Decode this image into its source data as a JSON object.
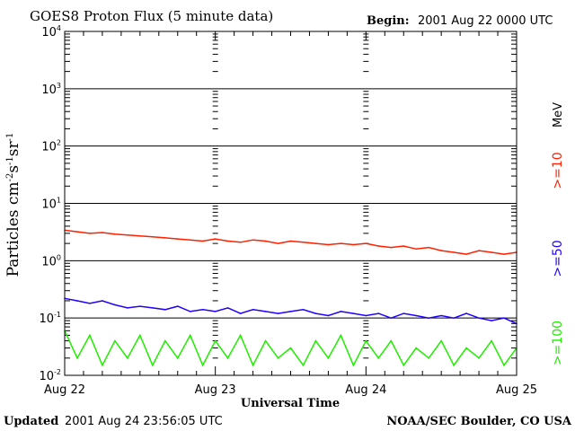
{
  "chart_data": {
    "type": "line",
    "title": "GOES8 Proton Flux (5 minute data)",
    "begin_label": "Begin:",
    "begin_value": "2001 Aug 22 0000 UTC",
    "xlabel": "Universal Time",
    "ylabel": "Particles cm-2s-1sr-1",
    "ylabel_parts": [
      "Particles cm",
      "-2",
      "s",
      "-1",
      "sr",
      "-1"
    ],
    "yscale": "log",
    "ylim": [
      0.01,
      10000
    ],
    "y_ticks": [
      {
        "exp": "4"
      },
      {
        "exp": "3"
      },
      {
        "exp": "2"
      },
      {
        "exp": "1"
      },
      {
        "exp": "0"
      },
      {
        "exp": "-1"
      },
      {
        "exp": "-2"
      }
    ],
    "y_tick_base": "10",
    "xlim_hours": [
      0,
      72
    ],
    "x_ticks": [
      "Aug 22",
      "Aug 23",
      "Aug 24",
      "Aug 25"
    ],
    "units_label": "MeV",
    "grid": true,
    "x_hours": [
      0,
      2,
      4,
      6,
      8,
      10,
      12,
      14,
      16,
      18,
      20,
      22,
      24,
      26,
      28,
      30,
      32,
      34,
      36,
      38,
      40,
      42,
      44,
      46,
      48,
      50,
      52,
      54,
      56,
      58,
      60,
      62,
      64,
      66,
      68,
      70,
      72
    ],
    "series": [
      {
        "name": ">=10",
        "color": "#ff2000",
        "values": [
          3.4,
          3.2,
          3.0,
          3.1,
          2.9,
          2.8,
          2.7,
          2.6,
          2.5,
          2.4,
          2.3,
          2.2,
          2.4,
          2.2,
          2.1,
          2.3,
          2.2,
          2.0,
          2.2,
          2.1,
          2.0,
          1.9,
          2.0,
          1.9,
          2.0,
          1.8,
          1.7,
          1.8,
          1.6,
          1.7,
          1.5,
          1.4,
          1.3,
          1.5,
          1.4,
          1.3,
          1.4
        ]
      },
      {
        "name": ">=50",
        "color": "#2000ff",
        "values": [
          0.22,
          0.2,
          0.18,
          0.2,
          0.17,
          0.15,
          0.16,
          0.15,
          0.14,
          0.16,
          0.13,
          0.14,
          0.13,
          0.15,
          0.12,
          0.14,
          0.13,
          0.12,
          0.13,
          0.14,
          0.12,
          0.11,
          0.13,
          0.12,
          0.11,
          0.12,
          0.1,
          0.12,
          0.11,
          0.1,
          0.11,
          0.1,
          0.12,
          0.1,
          0.09,
          0.1,
          0.08
        ]
      },
      {
        "name": ">=100",
        "color": "#20ee00",
        "values": [
          0.06,
          0.02,
          0.05,
          0.015,
          0.04,
          0.02,
          0.05,
          0.015,
          0.04,
          0.02,
          0.05,
          0.015,
          0.04,
          0.02,
          0.05,
          0.015,
          0.04,
          0.02,
          0.03,
          0.015,
          0.04,
          0.02,
          0.05,
          0.015,
          0.04,
          0.02,
          0.04,
          0.015,
          0.03,
          0.02,
          0.04,
          0.015,
          0.03,
          0.02,
          0.04,
          0.015,
          0.03
        ]
      }
    ]
  },
  "footer": {
    "updated_label": "Updated",
    "updated_value": "2001 Aug 24 23:56:05 UTC",
    "source": "NOAA/SEC Boulder, CO USA"
  }
}
